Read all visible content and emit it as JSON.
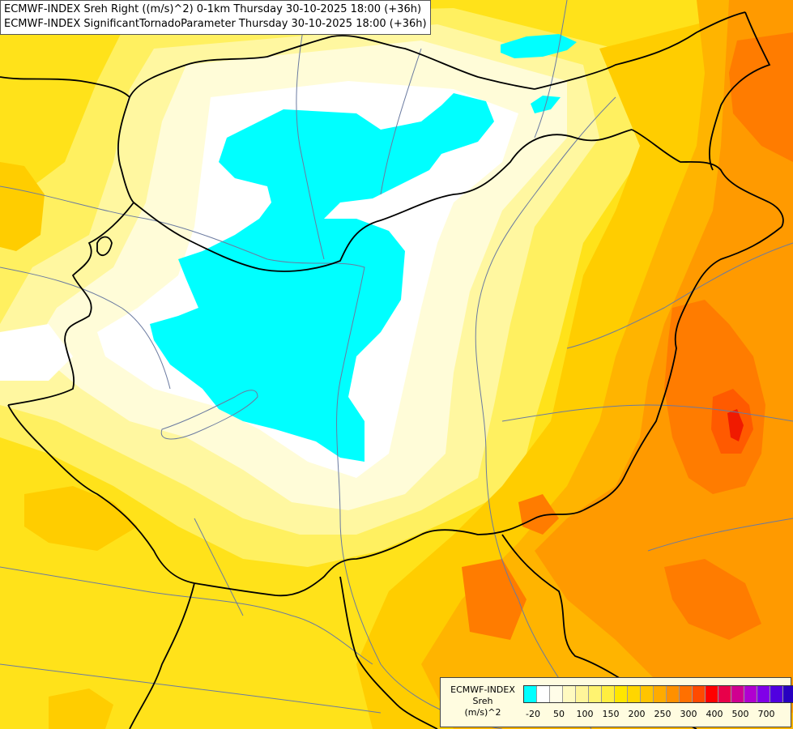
{
  "title": {
    "line1": "ECMWF-INDEX Sreh Right ((m/s)^2) 0-1km Thursday 30-10-2025 18:00 (+36h)",
    "line2": "ECMWF-INDEX SignificantTornadoParameter Thursday 30-10-2025 18:00 (+36h)"
  },
  "legend": {
    "line1": "ECMWF-INDEX",
    "line2": "Sreh",
    "line3": "(m/s)^2",
    "colors": [
      "#00ffff",
      "#ffffff",
      "#fffde8",
      "#fffac0",
      "#fff59a",
      "#fff370",
      "#ffee40",
      "#ffe600",
      "#ffd600",
      "#ffc400",
      "#ffab00",
      "#ff9000",
      "#ff7000",
      "#ff4a00",
      "#ff0000",
      "#e8004a",
      "#d00090",
      "#b000d0",
      "#8000e8",
      "#5000e0",
      "#2800c0",
      "#000080"
    ],
    "ticks": [
      {
        "label": "-20",
        "at": 0
      },
      {
        "label": "50",
        "at": 2
      },
      {
        "label": "100",
        "at": 4
      },
      {
        "label": "150",
        "at": 6
      },
      {
        "label": "200",
        "at": 8
      },
      {
        "label": "250",
        "at": 10
      },
      {
        "label": "300",
        "at": 12
      },
      {
        "label": "400",
        "at": 14
      },
      {
        "label": "500",
        "at": 16
      },
      {
        "label": "700",
        "at": 18
      }
    ]
  },
  "map": {
    "field_colors": {
      "cyan": "#00ffff",
      "white": "#ffffff",
      "very_pale": "#fffcd8",
      "pale": "#fff7a0",
      "light": "#fff060",
      "yellow": "#ffe21a",
      "gold": "#ffcd00",
      "orange_light": "#ffb400",
      "orange": "#ff9a00",
      "orange_dark": "#ff7c00",
      "red_orange": "#ff5a00",
      "red": "#f01a00"
    },
    "border_color": "#000000",
    "river_color": "#6a7aa0"
  }
}
